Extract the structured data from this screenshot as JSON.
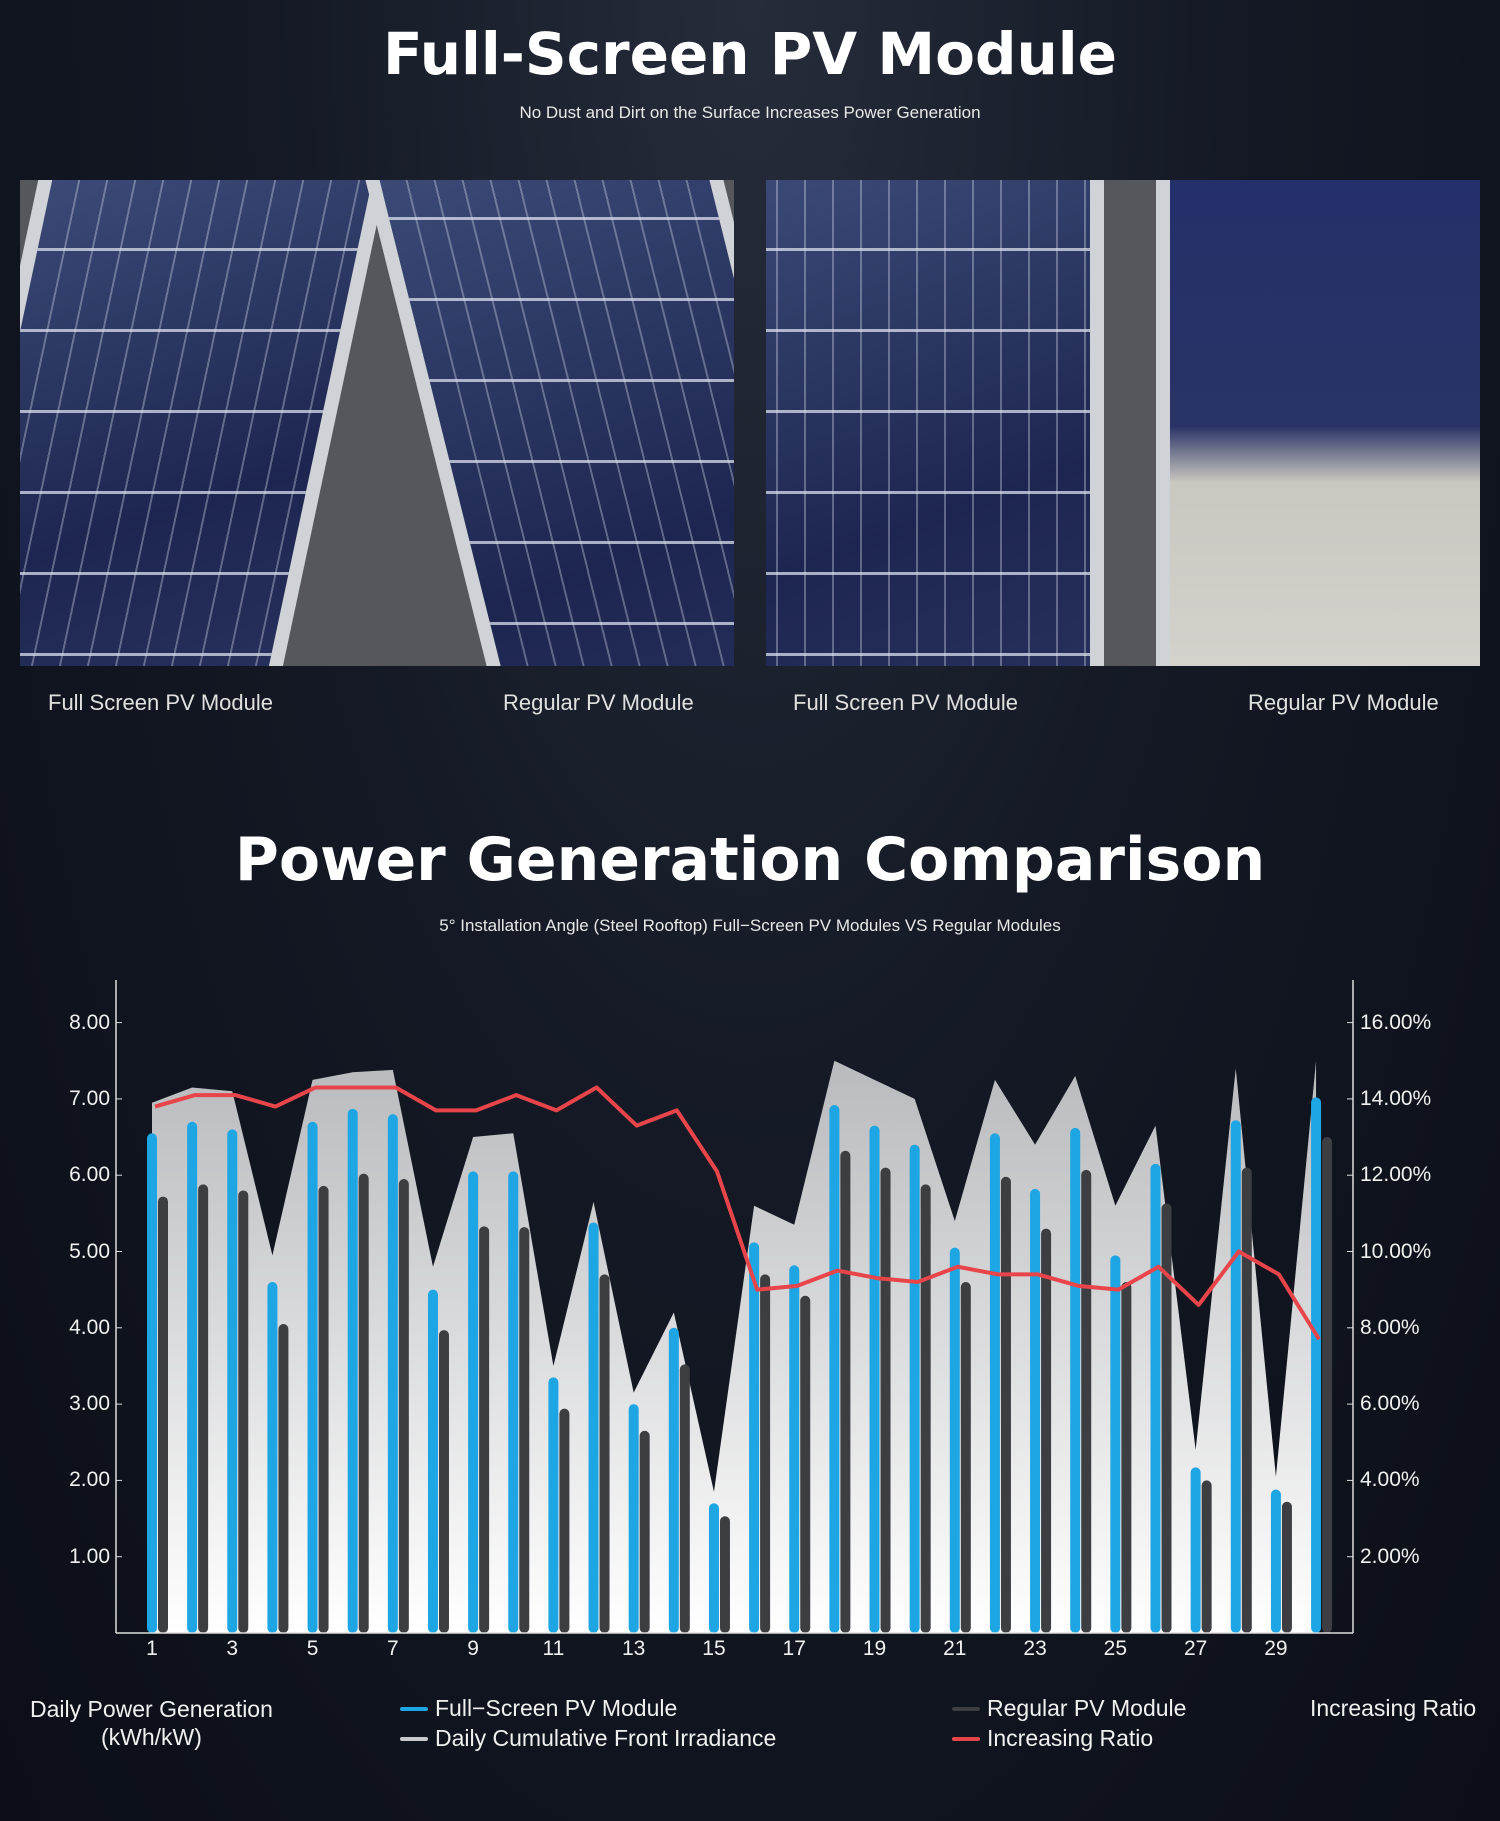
{
  "header": {
    "title": "Full-Screen PV Module",
    "subtitle": "No Dust and Dirt on the Surface Increases Power Generation"
  },
  "photos": [
    {
      "left_caption": "Full Screen PV Module",
      "right_caption": "Regular PV Module"
    },
    {
      "left_caption": "Full Screen PV Module",
      "right_caption": "Regular PV Module"
    }
  ],
  "section": {
    "title": "Power Generation Comparison",
    "subtitle": "5°   Installation Angle (Steel Rooftop) Full−Screen PV Modules VS Regular Modules"
  },
  "chart_data": {
    "type": "bar",
    "x": [
      1,
      2,
      3,
      4,
      5,
      6,
      7,
      8,
      9,
      10,
      11,
      12,
      13,
      14,
      15,
      16,
      17,
      18,
      19,
      20,
      21,
      22,
      23,
      24,
      25,
      26,
      27,
      28,
      29,
      30
    ],
    "x_tick_labels": [
      "1",
      "3",
      "5",
      "7",
      "9",
      "11",
      "13",
      "15",
      "17",
      "19",
      "21",
      "23",
      "25",
      "27",
      "29"
    ],
    "y_left": {
      "label": "Daily Power Generation\n(kWh/kW)",
      "range": [
        0,
        8.6
      ],
      "tick_labels": [
        "8.00",
        "7.00",
        "6.00",
        "5.00",
        "4.00",
        "3.00",
        "2.00",
        "1.00"
      ]
    },
    "y_right": {
      "label": "Increasing Ratio",
      "range": [
        0,
        17.2
      ],
      "tick_labels": [
        "16.00%",
        "14.00%",
        "12.00%",
        "10.00%",
        "8.00%",
        "6.00%",
        "4.00%",
        "2.00%"
      ]
    },
    "grid": false,
    "legend_position": "bottom",
    "series": [
      {
        "name": "Full−Screen PV Module",
        "type": "bar",
        "axis": "left",
        "color": "#1ea5e3",
        "values": [
          6.55,
          6.7,
          6.6,
          4.6,
          6.7,
          6.87,
          6.8,
          4.5,
          6.05,
          6.05,
          3.35,
          5.38,
          3.0,
          4.0,
          1.7,
          5.12,
          4.82,
          6.92,
          6.65,
          6.4,
          5.05,
          6.55,
          5.82,
          6.62,
          4.95,
          6.15,
          2.17,
          6.72,
          1.88,
          7.02
        ]
      },
      {
        "name": "Regular PV Module",
        "type": "bar",
        "axis": "left",
        "color": "#3d3e42",
        "values": [
          5.72,
          5.88,
          5.8,
          4.05,
          5.86,
          6.02,
          5.95,
          3.97,
          5.33,
          5.32,
          2.94,
          4.7,
          2.65,
          3.52,
          1.53,
          4.7,
          4.42,
          6.32,
          6.1,
          5.88,
          4.6,
          5.98,
          5.3,
          6.07,
          4.6,
          5.63,
          2.0,
          6.1,
          1.72,
          6.5
        ]
      },
      {
        "name": "Daily Cumulative Front Irradiance",
        "type": "area",
        "axis": "left",
        "color": "#c8c9cc",
        "values": [
          6.95,
          7.15,
          7.1,
          4.95,
          7.25,
          7.35,
          7.38,
          4.8,
          6.5,
          6.55,
          3.5,
          5.65,
          3.15,
          4.2,
          1.85,
          5.6,
          5.35,
          7.5,
          7.25,
          7.0,
          5.4,
          7.25,
          6.4,
          7.3,
          5.6,
          6.65,
          2.4,
          7.4,
          2.05,
          7.5
        ]
      },
      {
        "name": "Increasing Ratio",
        "type": "line",
        "axis": "right",
        "color": "#e8454b",
        "values": [
          13.8,
          14.1,
          14.1,
          13.8,
          14.3,
          14.3,
          14.3,
          13.7,
          13.7,
          14.1,
          13.7,
          14.3,
          13.3,
          13.7,
          12.1,
          9.0,
          9.1,
          9.5,
          9.3,
          9.2,
          9.6,
          9.4,
          9.4,
          9.1,
          9.0,
          9.6,
          8.6,
          10.0,
          9.4,
          7.7
        ]
      }
    ]
  }
}
